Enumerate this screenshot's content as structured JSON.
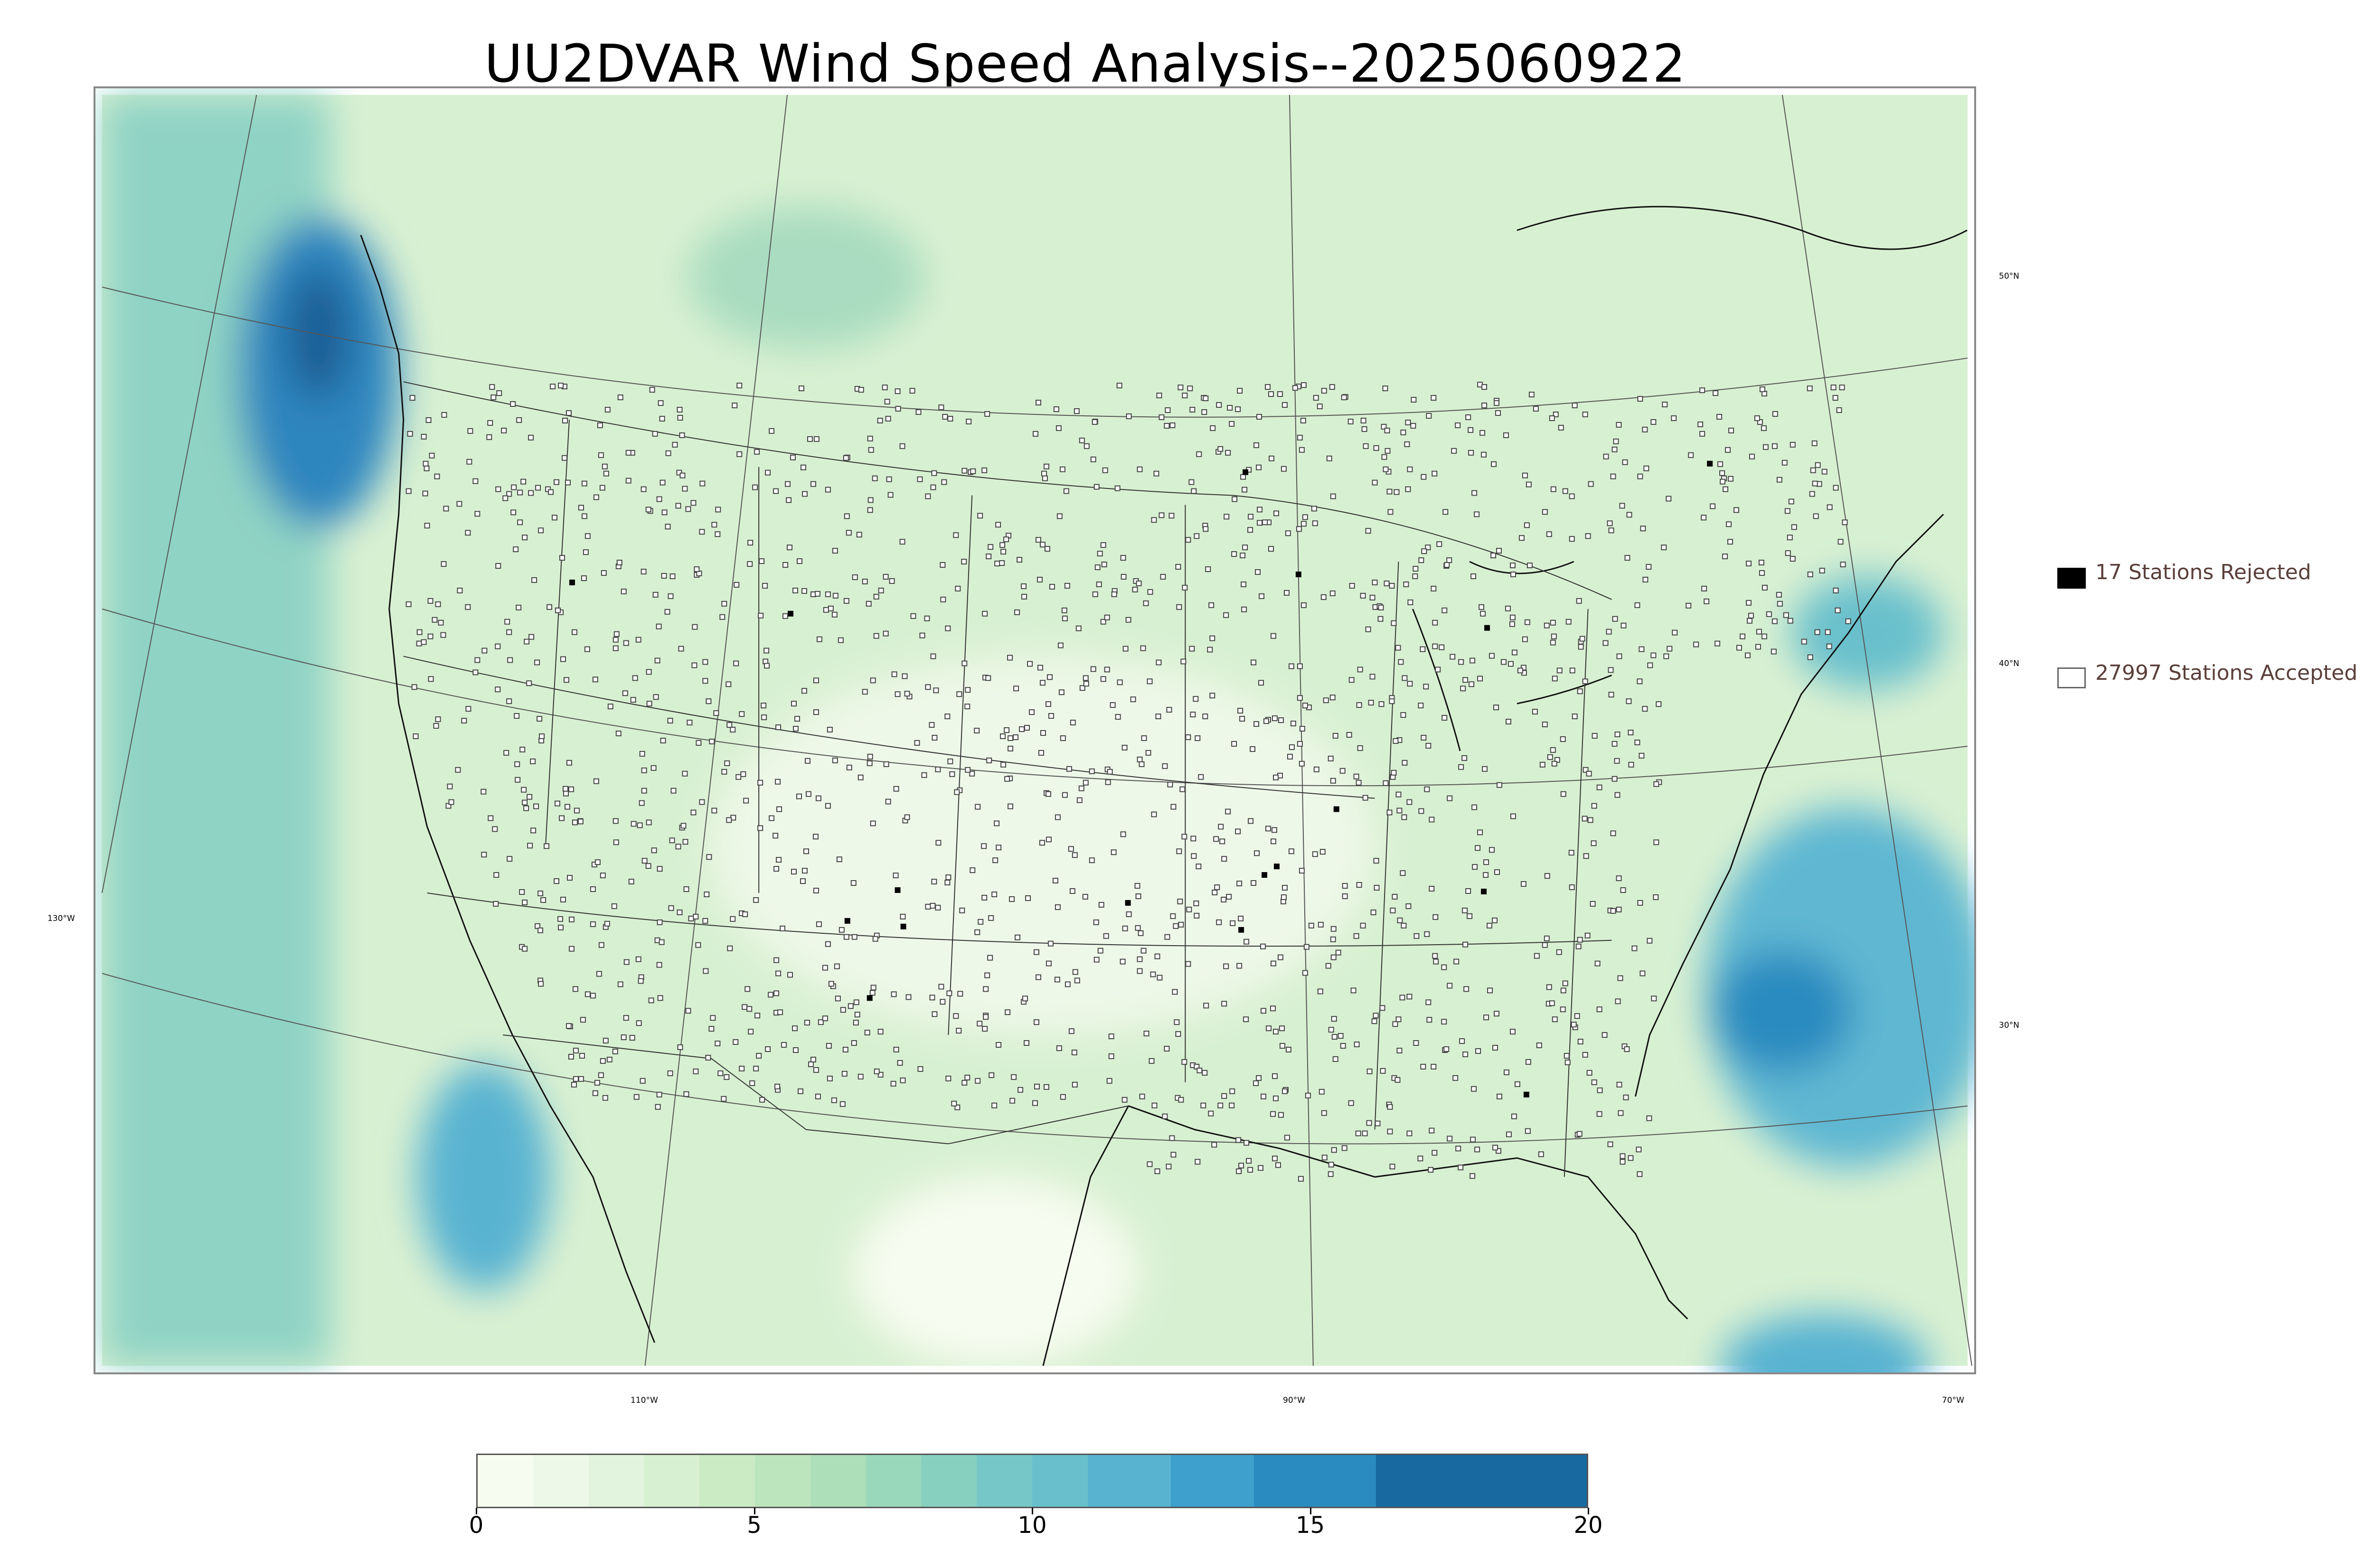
{
  "title": "UU2DVAR Wind Speed Analysis--2025060922",
  "map": {
    "latitude_labels": [
      "50°N",
      "40°N",
      "30°N"
    ],
    "longitude_labels": [
      "130°W",
      "110°W",
      "90°W",
      "70°W"
    ],
    "colors": {
      "land_base": "#d8f0d2",
      "ocean_light": "#8fd3c4",
      "high_wind": "#2f86bf",
      "max_wind": "#1b5f96",
      "border": "#222222",
      "grid": "#555555"
    },
    "station_markers": {
      "accepted_symbol": "hollow-square",
      "rejected_symbol": "filled-black-square"
    }
  },
  "legend": {
    "rejected_label": "17 Stations Rejected",
    "accepted_label": "27997 Stations Accepted",
    "rejected_count": 17,
    "accepted_count": 27997
  },
  "colorbar": {
    "range": [
      0,
      20
    ],
    "tick_labels": [
      "0",
      "5",
      "10",
      "15",
      "20"
    ],
    "tick_values": [
      0,
      5,
      10,
      15,
      20
    ],
    "segments": [
      {
        "from": 0,
        "to": 1,
        "color": "#f7fcf0"
      },
      {
        "from": 1,
        "to": 2,
        "color": "#eef8e8"
      },
      {
        "from": 2,
        "to": 3,
        "color": "#e3f4de"
      },
      {
        "from": 3,
        "to": 4,
        "color": "#d8f0d2"
      },
      {
        "from": 4,
        "to": 5,
        "color": "#cbebc5"
      },
      {
        "from": 5,
        "to": 6,
        "color": "#bde5bd"
      },
      {
        "from": 6,
        "to": 7,
        "color": "#addfb8"
      },
      {
        "from": 7,
        "to": 8,
        "color": "#9ad8bc"
      },
      {
        "from": 8,
        "to": 9,
        "color": "#87d0c0"
      },
      {
        "from": 9,
        "to": 10,
        "color": "#76c8c8"
      },
      {
        "from": 10,
        "to": 11,
        "color": "#69c0cc"
      },
      {
        "from": 11,
        "to": 12.5,
        "color": "#58b3d1"
      },
      {
        "from": 12.5,
        "to": 14,
        "color": "#3ea0cc"
      },
      {
        "from": 14,
        "to": 16.2,
        "color": "#2a8bc0"
      },
      {
        "from": 16.2,
        "to": 20,
        "color": "#17699f"
      }
    ]
  }
}
